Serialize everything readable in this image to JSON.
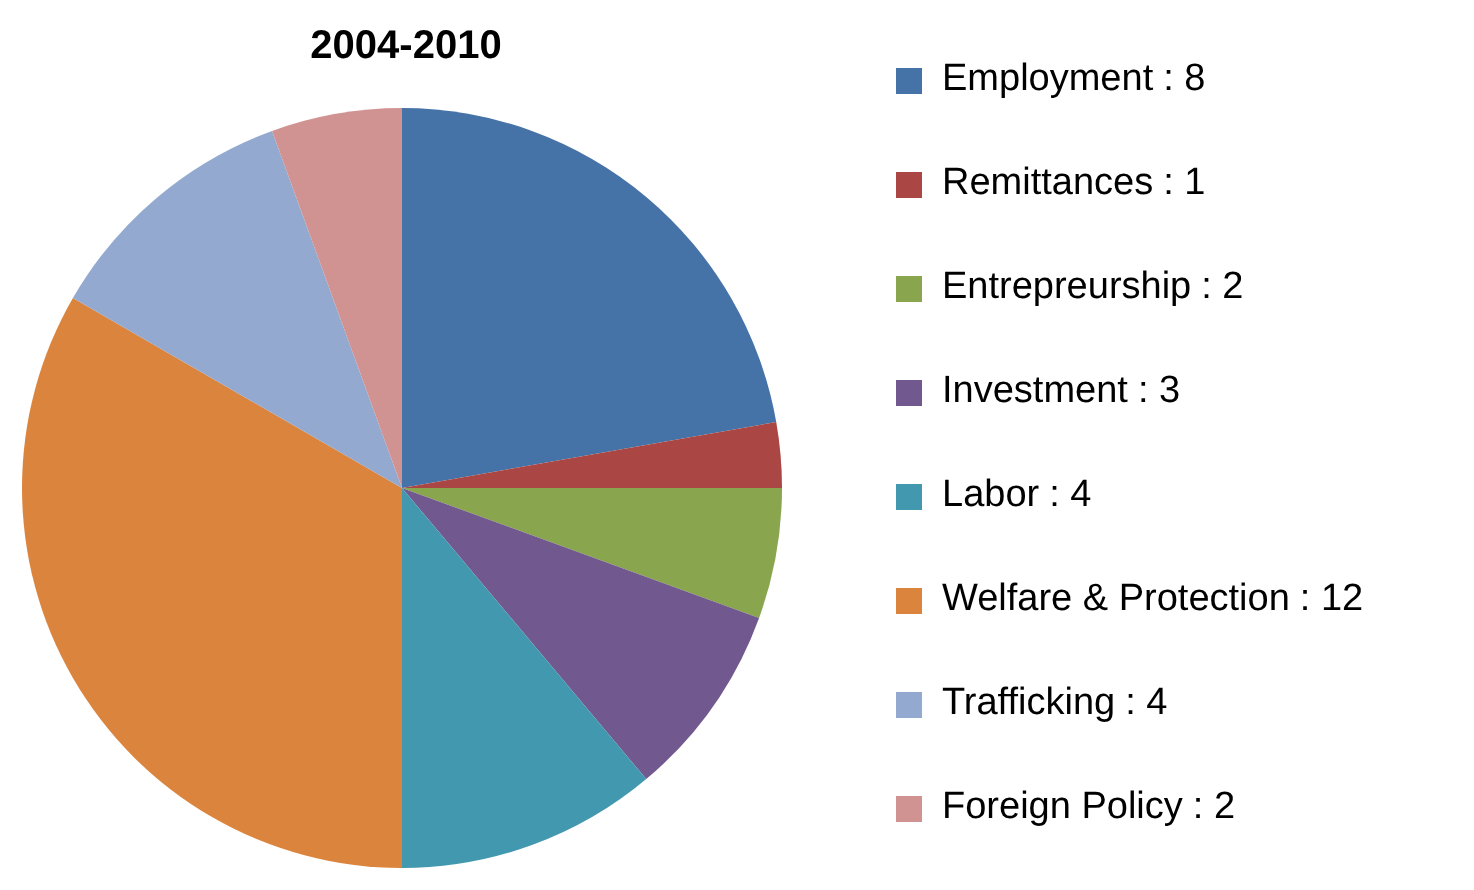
{
  "chart_data": {
    "type": "pie",
    "title": "2004-2010",
    "categories": [
      "Employment",
      "Remittances",
      "Entrepreurship",
      "Investment",
      "Labor",
      "Welfare & Protection",
      "Trafficking",
      "Foreign Policy"
    ],
    "values": [
      8,
      1,
      2,
      3,
      4,
      12,
      4,
      2
    ],
    "colors": [
      "#4572a7",
      "#aa4643",
      "#89a54e",
      "#71588f",
      "#4198af",
      "#db843d",
      "#93a9cf",
      "#d19392"
    ],
    "value_labels": [
      ": 8",
      ": 1",
      ": 2",
      ": 3",
      ": 4",
      ": 12",
      ": 4",
      ": 2"
    ],
    "legend": "right"
  }
}
